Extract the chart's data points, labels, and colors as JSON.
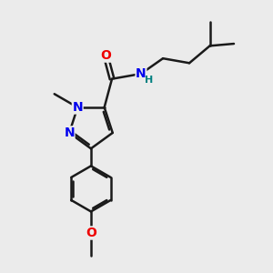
{
  "background_color": "#ebebeb",
  "bond_color": "#1a1a1a",
  "bond_width": 1.8,
  "atom_colors": {
    "N": "#0000ee",
    "O": "#ee0000",
    "C": "#1a1a1a",
    "H": "#008080"
  },
  "font_size": 10
}
